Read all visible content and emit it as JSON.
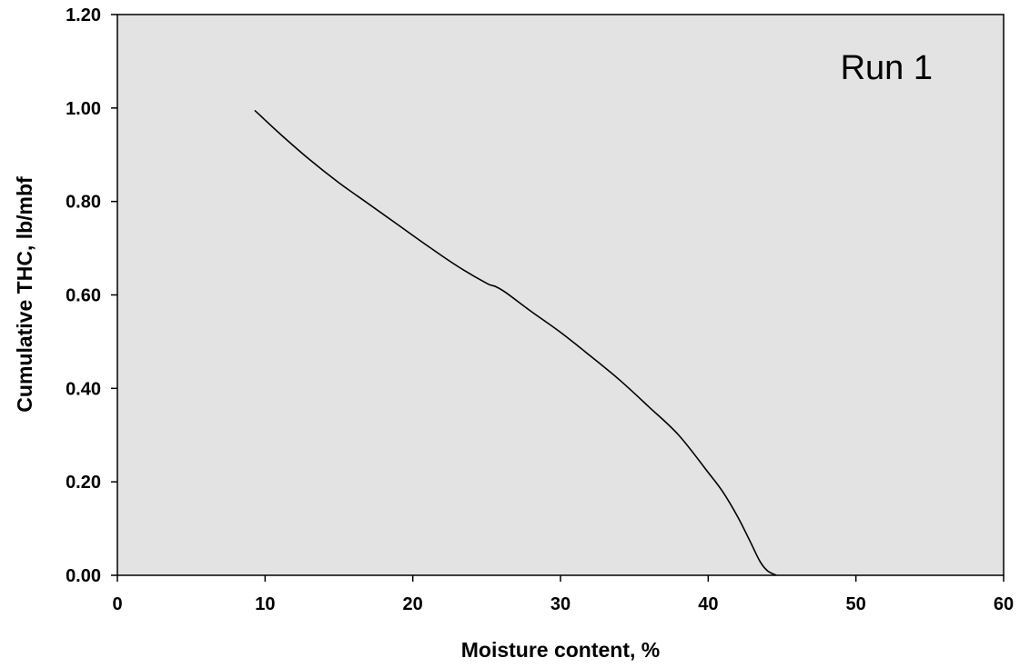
{
  "chart_data": {
    "type": "line",
    "title": "",
    "annotation": "Run 1",
    "xlabel": "Moisture content, %",
    "ylabel": "Cumulative THC, lb/mbf",
    "xlim": [
      0,
      60
    ],
    "ylim": [
      0,
      1.2
    ],
    "x_ticks": [
      "0",
      "10",
      "20",
      "30",
      "40",
      "50",
      "60"
    ],
    "y_ticks": [
      "0.00",
      "0.20",
      "0.40",
      "0.60",
      "0.80",
      "1.00",
      "1.20"
    ],
    "grid": false,
    "legend": "none",
    "plot_background": "#e3e3e3",
    "line_color": "#000000",
    "series": [
      {
        "x": [
          9.3,
          11.0,
          13.0,
          15.0,
          17.0,
          19.0,
          21.0,
          23.0,
          25.0,
          25.6,
          26.3,
          28.0,
          30.0,
          32.0,
          34.0,
          36.0,
          38.0,
          40.0,
          41.0,
          42.0,
          42.8,
          43.5,
          44.0,
          44.6
        ],
        "y": [
          0.995,
          0.945,
          0.89,
          0.84,
          0.795,
          0.75,
          0.705,
          0.662,
          0.625,
          0.618,
          0.605,
          0.565,
          0.52,
          0.47,
          0.418,
          0.36,
          0.3,
          0.22,
          0.178,
          0.125,
          0.075,
          0.03,
          0.01,
          0.0
        ]
      }
    ]
  }
}
